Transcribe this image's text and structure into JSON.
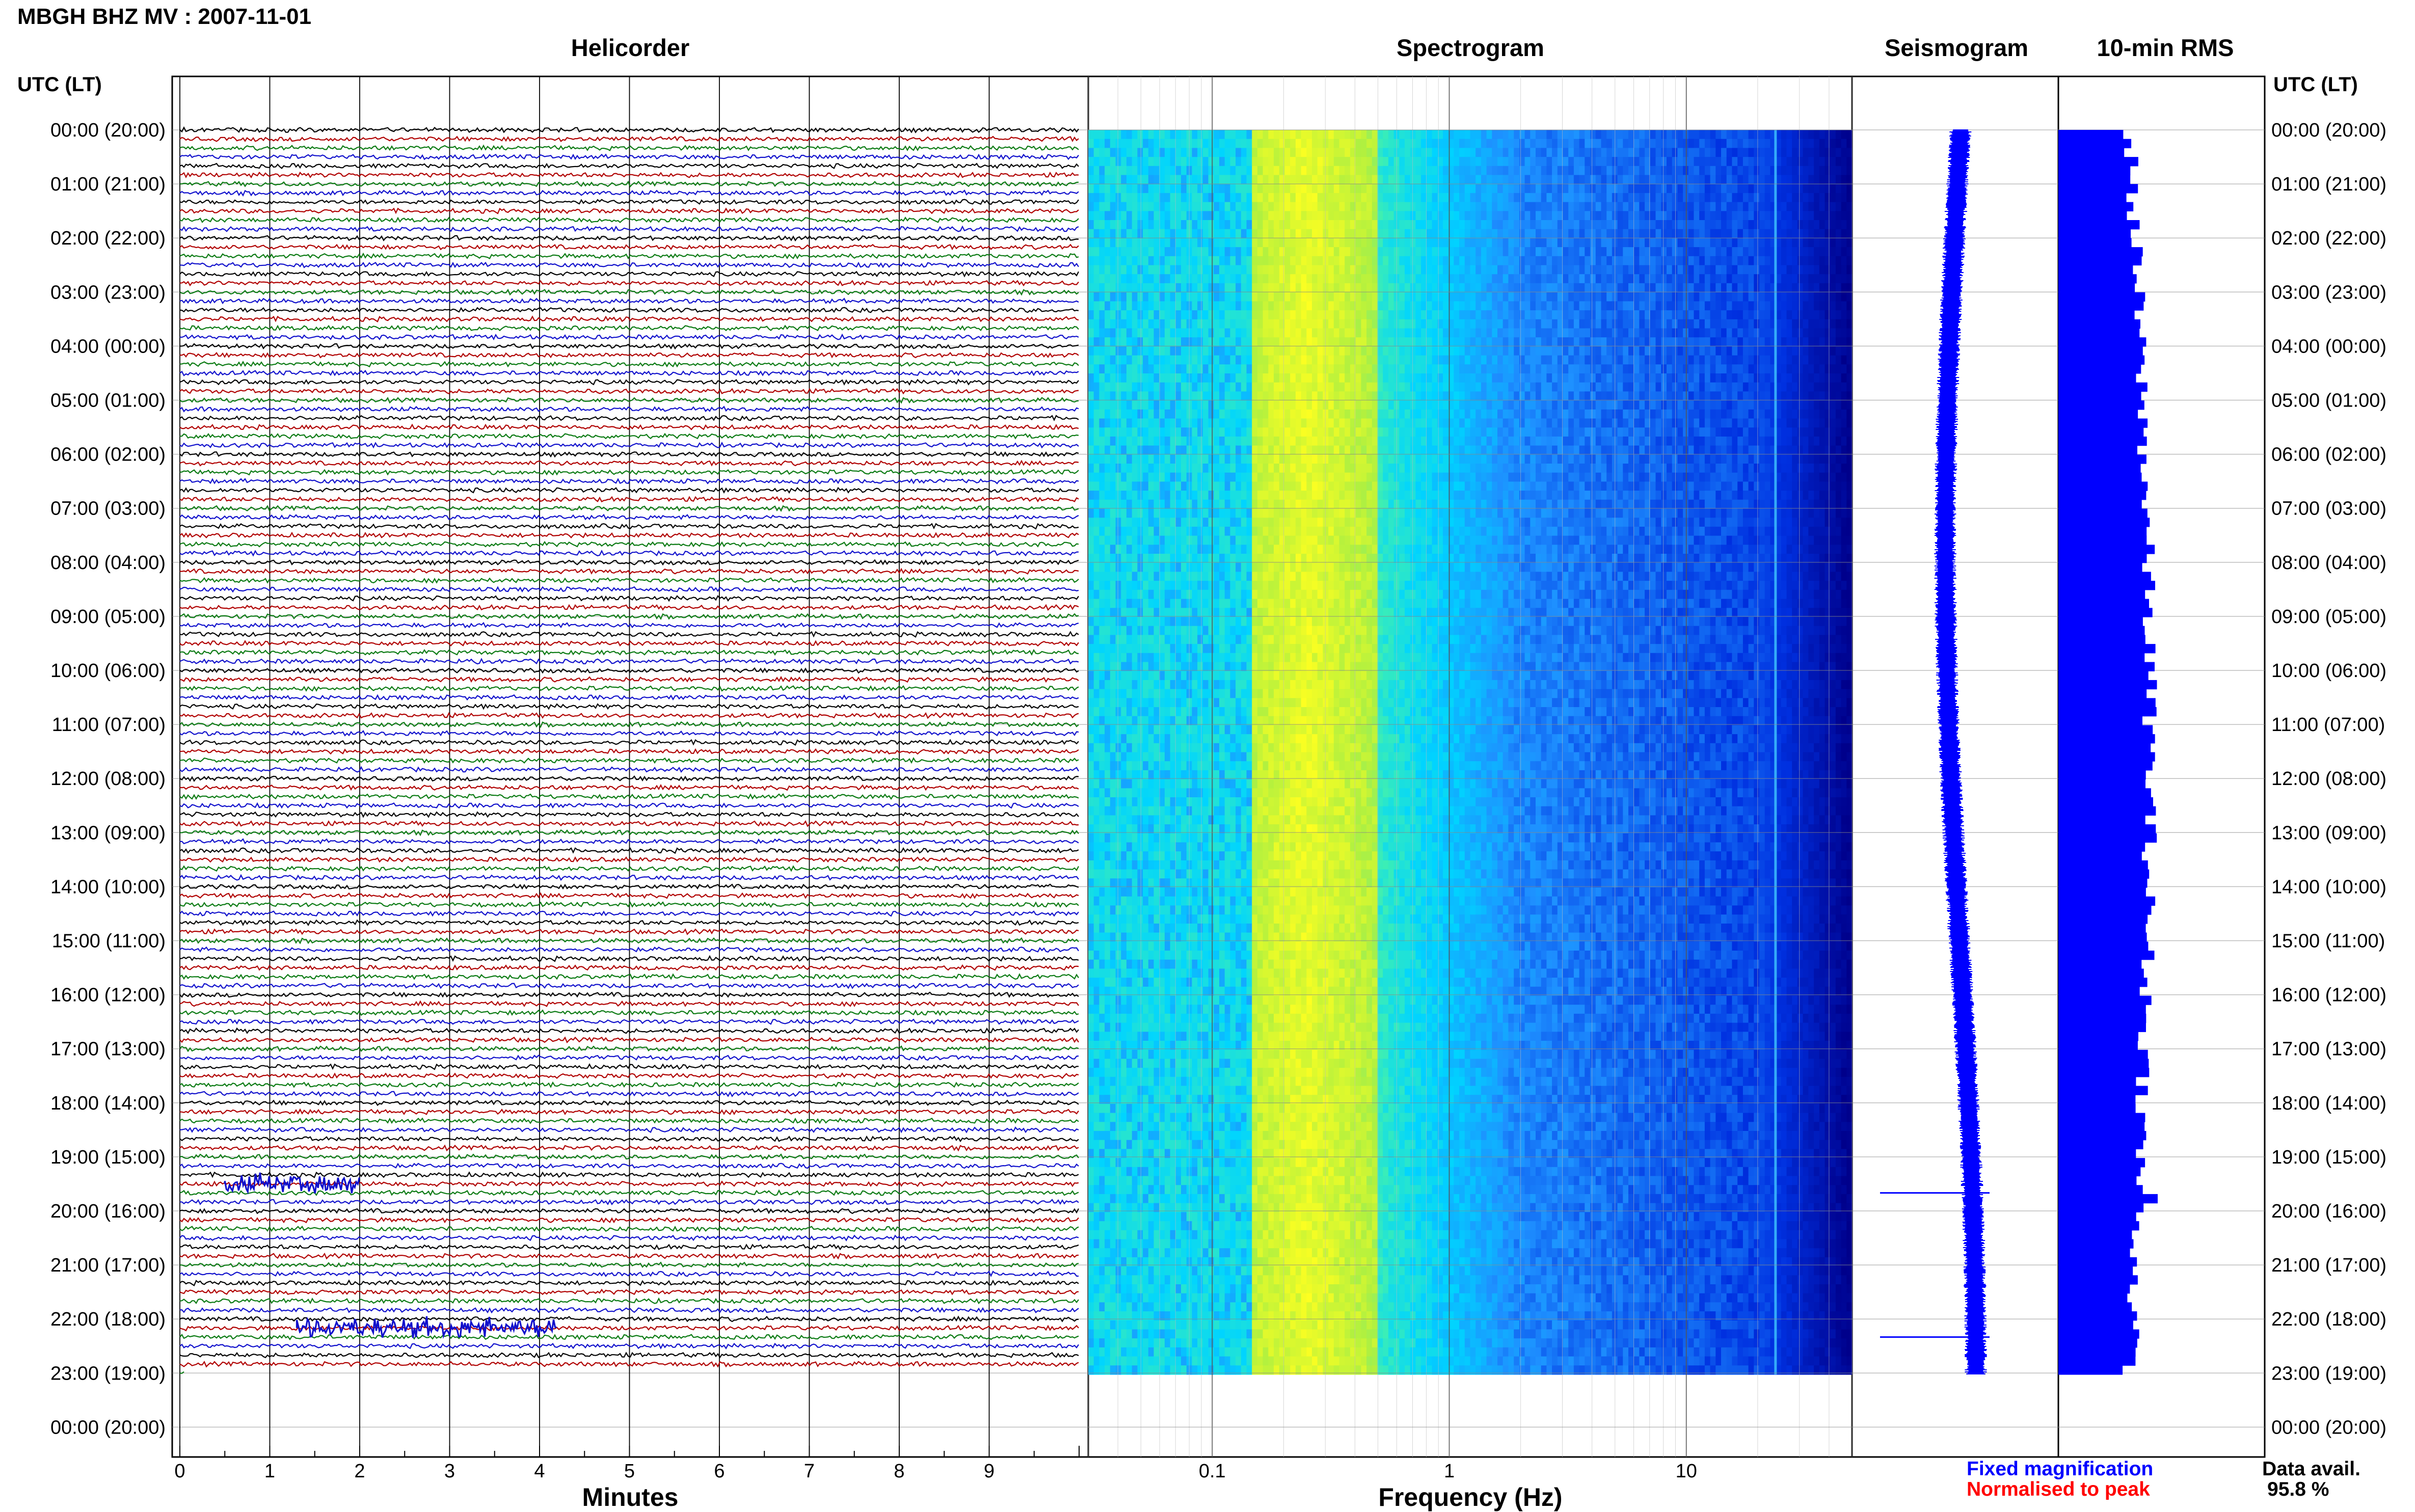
{
  "header": {
    "title": "MBGH BHZ MV : 2007-11-01"
  },
  "row_axis": {
    "label": "UTC (LT)"
  },
  "chart_data": [
    {
      "type": "line",
      "panel": "Helicorder",
      "title": "Helicorder",
      "xlabel": "Minutes",
      "xticks": [
        0,
        1,
        2,
        3,
        4,
        5,
        6,
        7,
        8,
        9
      ],
      "xlim": [
        0,
        10
      ],
      "rows_per_hour": 6,
      "row_minutes": 10,
      "trace_colors": [
        "#000000",
        "#b00000",
        "#0a7a12",
        "#1010cc"
      ],
      "events": [
        {
          "utc": "19:30",
          "minute_range": [
            0.5,
            2.0
          ],
          "color": "#1010cc"
        },
        {
          "utc": "22:10",
          "minute_range": [
            1.3,
            4.2
          ],
          "color": "#1010cc"
        }
      ],
      "row_labels": [
        "00:00 (20:00)",
        "01:00 (21:00)",
        "02:00 (22:00)",
        "03:00 (23:00)",
        "04:00 (00:00)",
        "05:00 (01:00)",
        "06:00 (02:00)",
        "07:00 (03:00)",
        "08:00 (04:00)",
        "09:00 (05:00)",
        "10:00 (06:00)",
        "11:00 (07:00)",
        "12:00 (08:00)",
        "13:00 (09:00)",
        "14:00 (10:00)",
        "15:00 (11:00)",
        "16:00 (12:00)",
        "17:00 (13:00)",
        "18:00 (14:00)",
        "19:00 (15:00)",
        "20:00 (16:00)",
        "21:00 (17:00)",
        "22:00 (18:00)",
        "23:00 (19:00)",
        "00:00 (20:00)"
      ]
    },
    {
      "type": "heatmap",
      "panel": "Spectrogram",
      "title": "Spectrogram",
      "xlabel": "Frequency (Hz)",
      "xscale": "log",
      "xlim": [
        0.03,
        50
      ],
      "xtick_labels": [
        "0.1",
        "1",
        "10"
      ],
      "xtick_values": [
        0.1,
        1,
        10
      ],
      "colormap": [
        "#00008b",
        "#0030e0",
        "#1e90ff",
        "#00d4ff",
        "#40f0b0",
        "#b0f040",
        "#ffff20"
      ],
      "time_range_utc": [
        "00:00",
        "23:00"
      ]
    },
    {
      "type": "line",
      "panel": "Seismogram",
      "title": "Seismogram",
      "color": "#0000ff",
      "time_range_utc": [
        "00:00",
        "23:00"
      ],
      "spikes_utc": [
        "19:40",
        "22:20"
      ]
    },
    {
      "type": "bar",
      "panel": "10-min RMS",
      "title": "10-min RMS",
      "color": "#0000ff",
      "time_range_utc": [
        "00:00",
        "23:00"
      ]
    }
  ],
  "footer": {
    "legend_fixed": "Fixed magnification",
    "legend_fixed_color": "#0000ff",
    "legend_norm": "Normalised to peak",
    "legend_norm_color": "#ff0000",
    "data_avail_label": "Data avail.",
    "data_avail_value": "95.8 %"
  }
}
